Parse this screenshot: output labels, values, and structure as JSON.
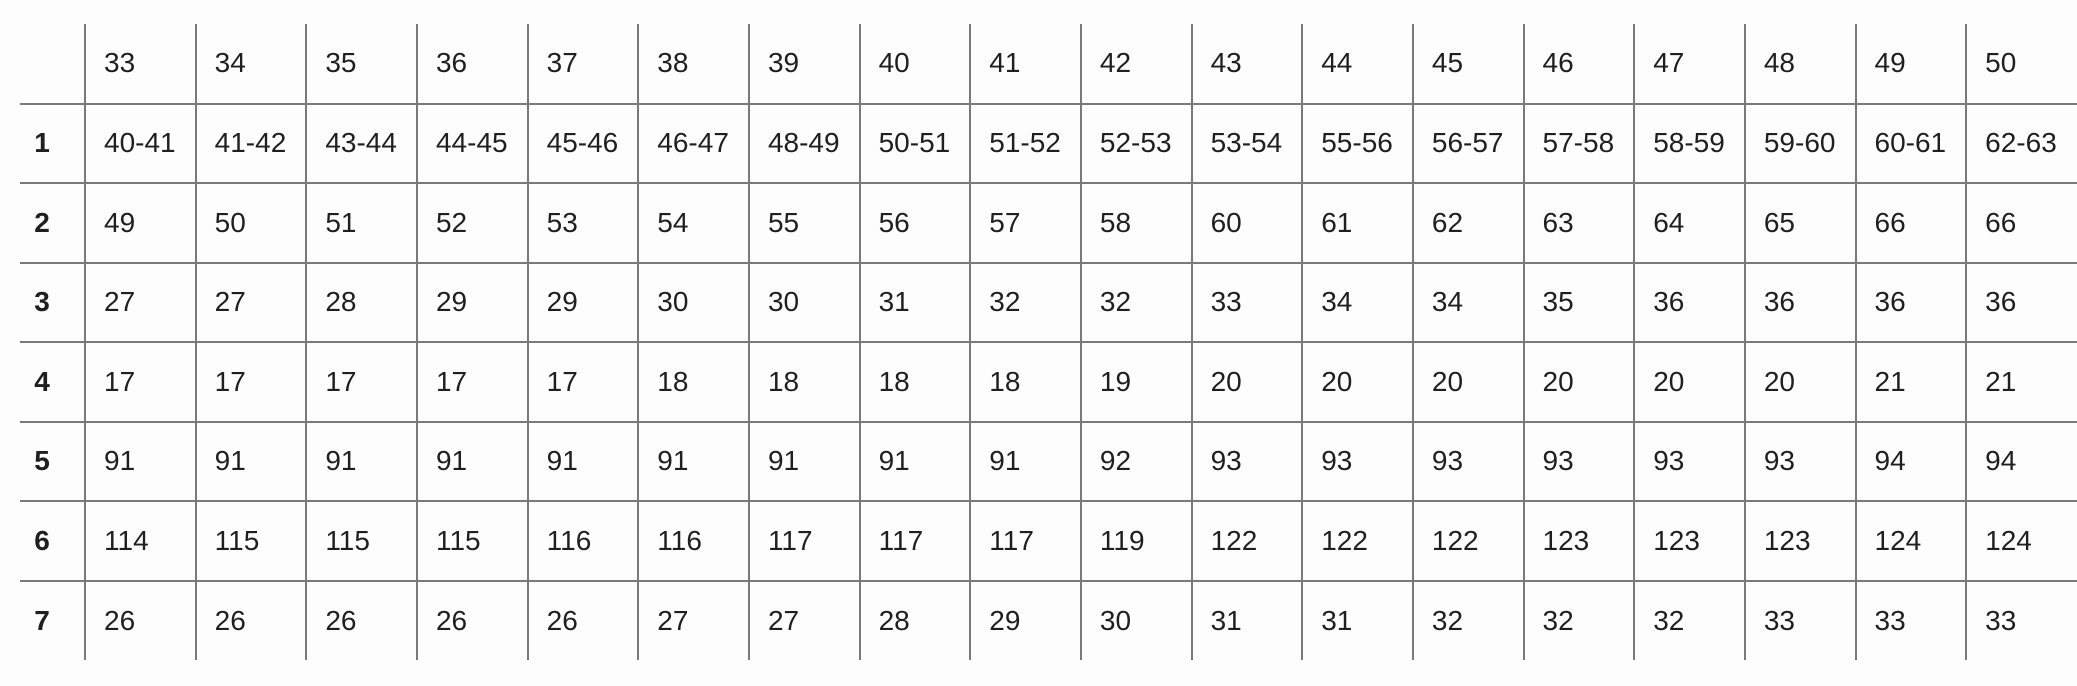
{
  "chart_data": {
    "type": "table",
    "corner_label": "",
    "column_headers": [
      "33",
      "34",
      "35",
      "36",
      "37",
      "38",
      "39",
      "40",
      "41",
      "42",
      "43",
      "44",
      "45",
      "46",
      "47",
      "48",
      "49",
      "50"
    ],
    "rows": [
      {
        "label": "1",
        "values": [
          "40-41",
          "41-42",
          "43-44",
          "44-45",
          "45-46",
          "46-47",
          "48-49",
          "50-51",
          "51-52",
          "52-53",
          "53-54",
          "55-56",
          "56-57",
          "57-58",
          "58-59",
          "59-60",
          "60-61",
          "62-63"
        ]
      },
      {
        "label": "2",
        "values": [
          "49",
          "50",
          "51",
          "52",
          "53",
          "54",
          "55",
          "56",
          "57",
          "58",
          "60",
          "61",
          "62",
          "63",
          "64",
          "65",
          "66",
          "66"
        ]
      },
      {
        "label": "3",
        "values": [
          "27",
          "27",
          "28",
          "29",
          "29",
          "30",
          "30",
          "31",
          "32",
          "32",
          "33",
          "34",
          "34",
          "35",
          "36",
          "36",
          "36",
          "36"
        ]
      },
      {
        "label": "4",
        "values": [
          "17",
          "17",
          "17",
          "17",
          "17",
          "18",
          "18",
          "18",
          "18",
          "19",
          "20",
          "20",
          "20",
          "20",
          "20",
          "20",
          "21",
          "21"
        ]
      },
      {
        "label": "5",
        "values": [
          "91",
          "91",
          "91",
          "91",
          "91",
          "91",
          "91",
          "91",
          "91",
          "92",
          "93",
          "93",
          "93",
          "93",
          "93",
          "93",
          "94",
          "94"
        ]
      },
      {
        "label": "6",
        "values": [
          "114",
          "115",
          "115",
          "115",
          "116",
          "116",
          "117",
          "117",
          "117",
          "119",
          "122",
          "122",
          "122",
          "123",
          "123",
          "123",
          "124",
          "124"
        ]
      },
      {
        "label": "7",
        "values": [
          "26",
          "26",
          "26",
          "26",
          "26",
          "27",
          "27",
          "28",
          "29",
          "30",
          "31",
          "31",
          "32",
          "32",
          "32",
          "33",
          "33",
          "33"
        ]
      }
    ]
  },
  "style": {
    "grid_line_color": "#7a7a7a",
    "text_color": "#1f1f1f",
    "background_color": "#fdfdfd"
  }
}
